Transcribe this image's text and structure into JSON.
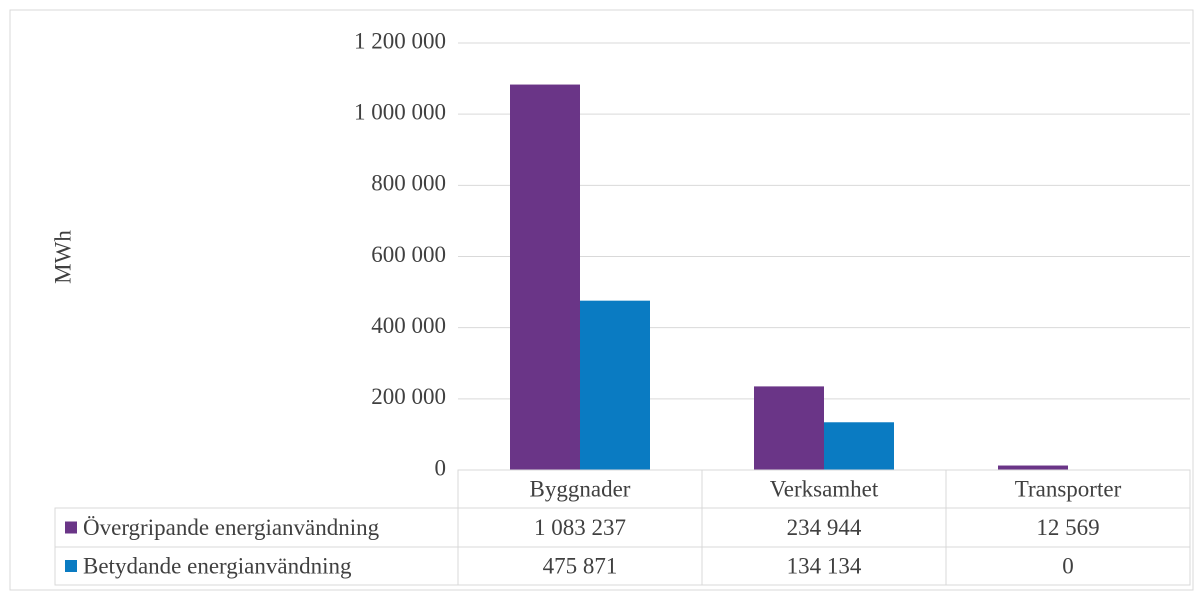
{
  "chart_data": {
    "type": "bar",
    "y_label": "MWh",
    "categories": [
      "Byggnader",
      "Verksamhet",
      "Transporter"
    ],
    "series": [
      {
        "name": "Övergripande energianvändning",
        "color": "#6a3587",
        "values": [
          1083237,
          234944,
          12569
        ],
        "value_labels": [
          "1 083 237",
          "234 944",
          "12 569"
        ]
      },
      {
        "name": "Betydande energianvändning",
        "color": "#0a7bc2",
        "values": [
          475871,
          134134,
          0
        ],
        "value_labels": [
          "475 871",
          "134 134",
          "0"
        ]
      }
    ],
    "ylim": [
      0,
      1200000
    ],
    "yticks": [
      0,
      {
        "value": 200000,
        "label": "200 000"
      },
      {
        "value": 400000,
        "label": "400 000"
      },
      {
        "value": 600000,
        "label": "600 000"
      },
      {
        "value": 800000,
        "label": "800 000"
      },
      {
        "value": 1000000,
        "label": "1 000 000"
      },
      {
        "value": 1200000,
        "label": "1 200 000"
      }
    ],
    "grid": true
  }
}
